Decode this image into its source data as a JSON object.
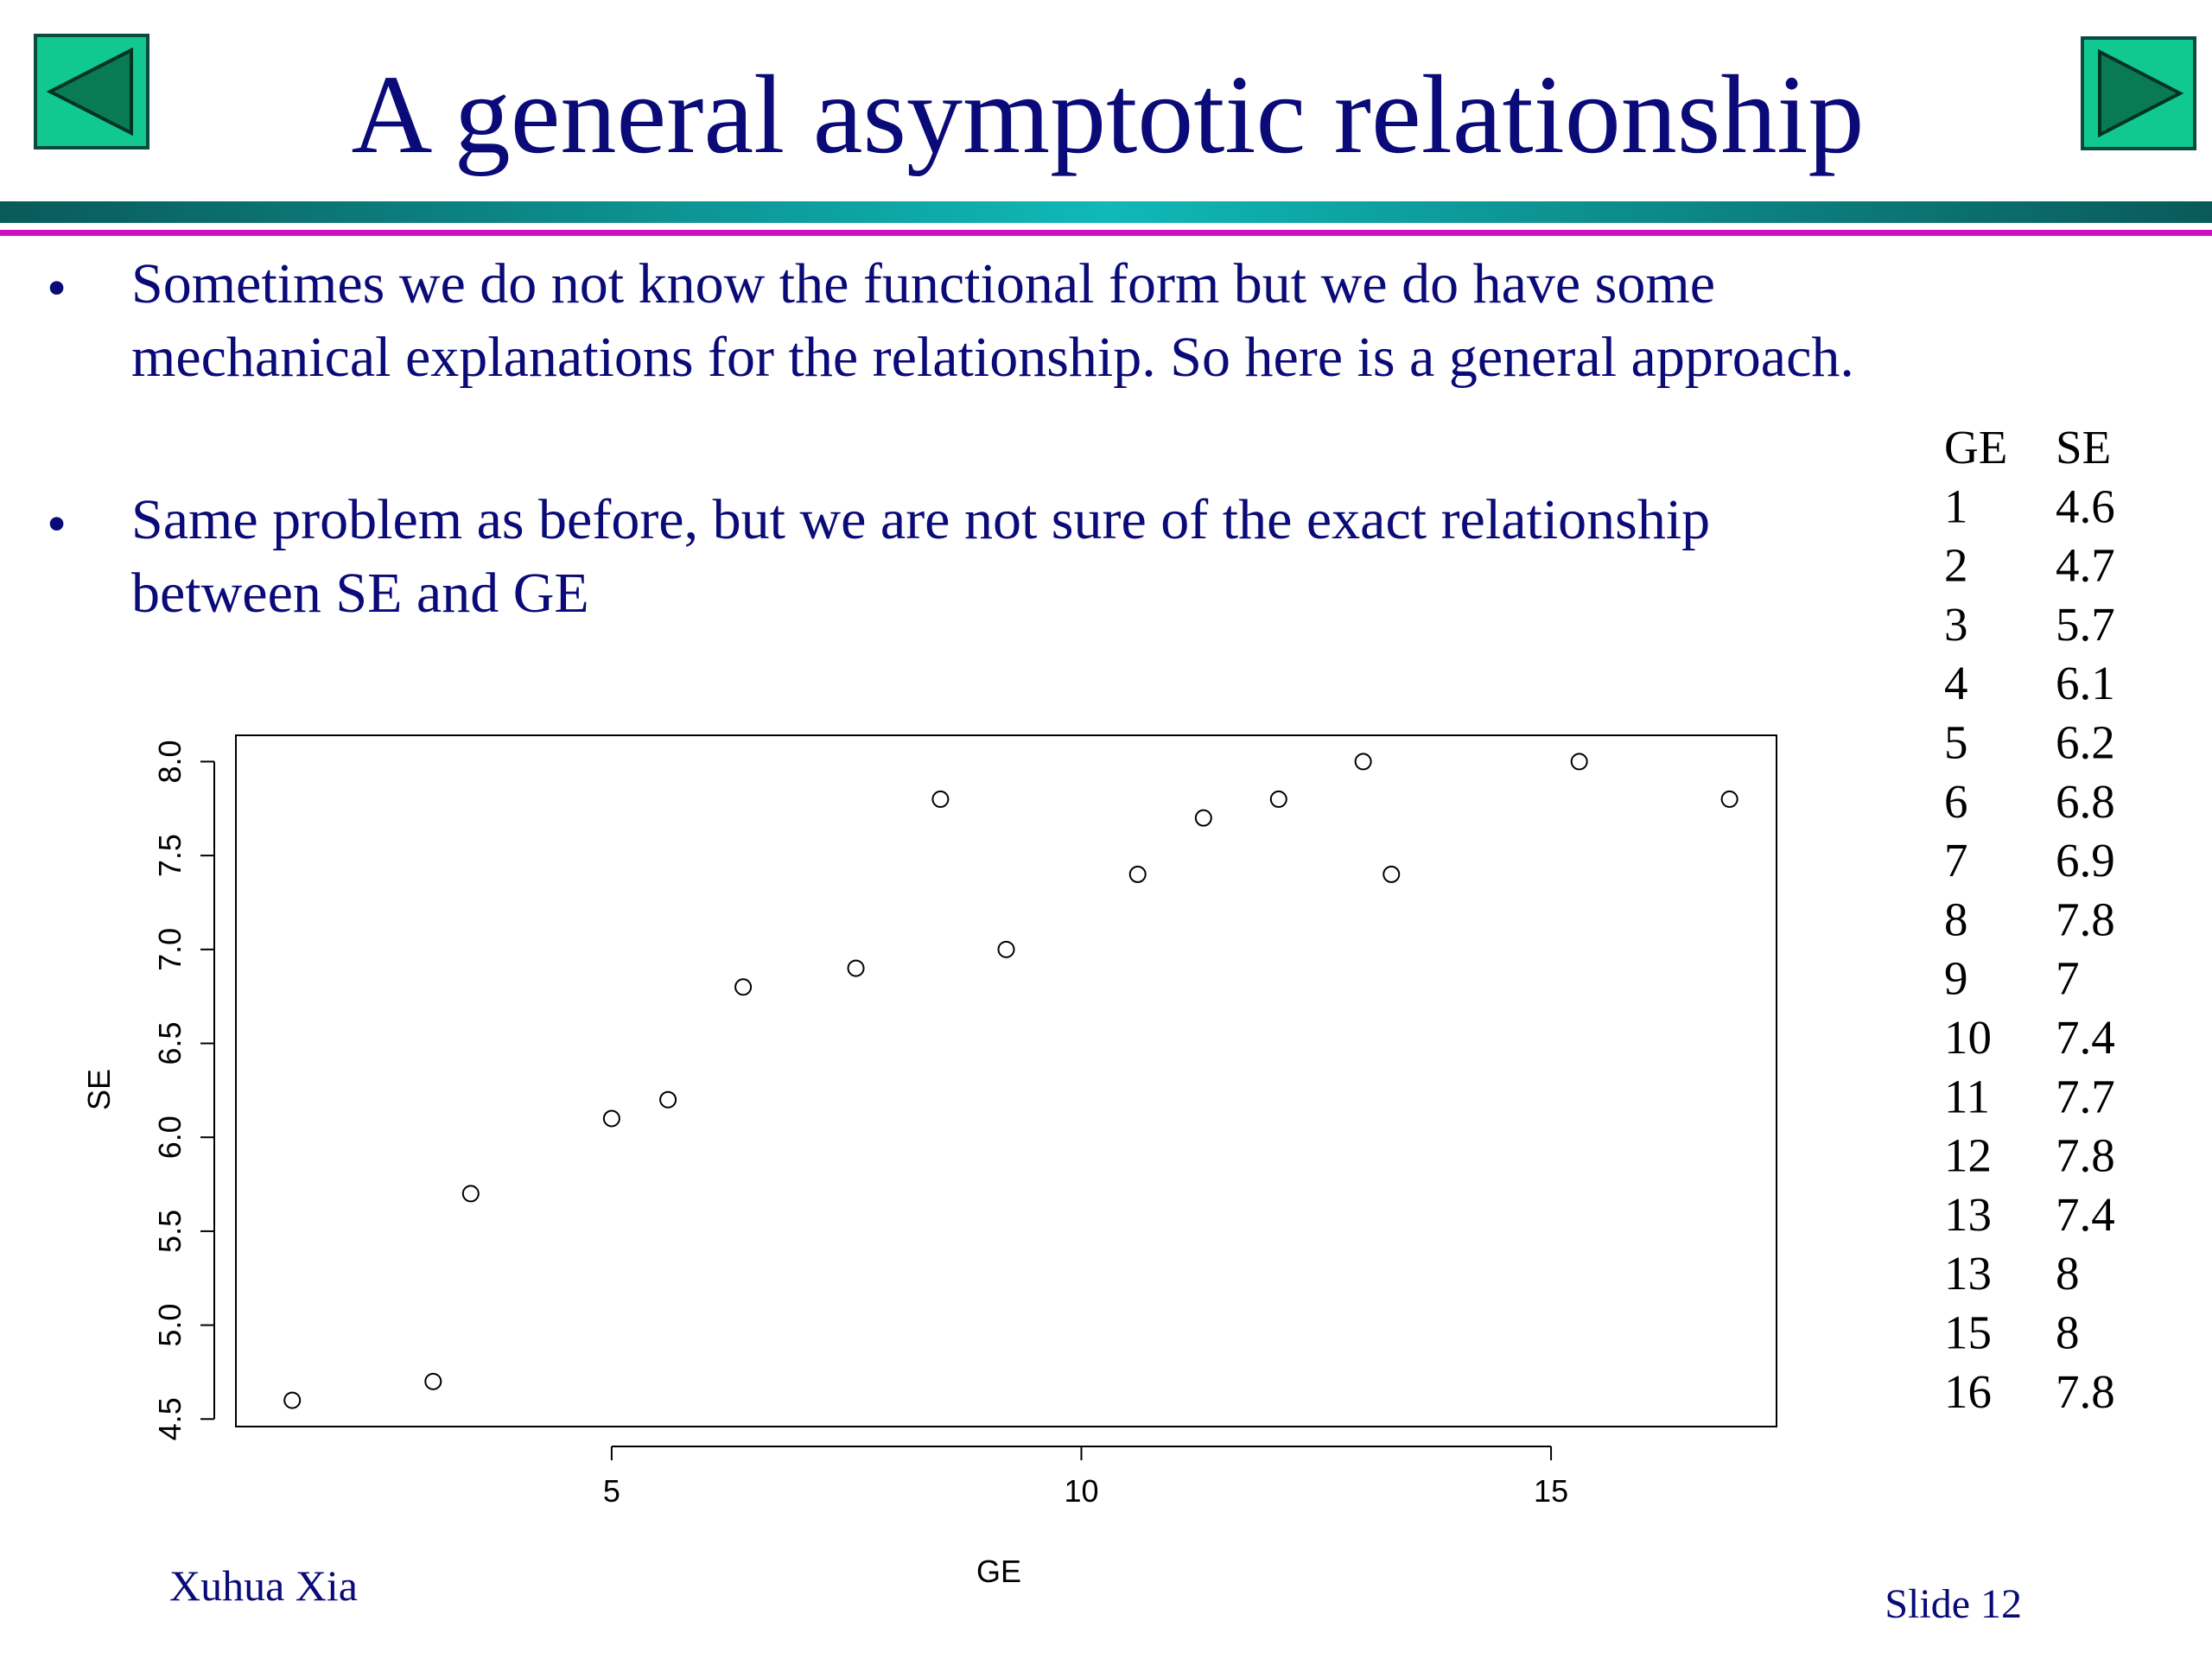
{
  "header": {
    "title": "A general asymptotic relationship"
  },
  "bullets": [
    "Sometimes we do not know the functional form but we do have some mechanical explanations for the relationship. So here is a general approach.",
    "Same problem as before, but we are not sure of the exact relationship between SE and GE"
  ],
  "table": {
    "columns": [
      "GE",
      "SE"
    ],
    "rows": [
      [
        1,
        4.6
      ],
      [
        2,
        4.7
      ],
      [
        3,
        5.7
      ],
      [
        4,
        6.1
      ],
      [
        5,
        6.2
      ],
      [
        6,
        6.8
      ],
      [
        7,
        6.9
      ],
      [
        8,
        7.8
      ],
      [
        9,
        7
      ],
      [
        10,
        7.4
      ],
      [
        11,
        7.7
      ],
      [
        12,
        7.8
      ],
      [
        13,
        7.4
      ],
      [
        13,
        8
      ],
      [
        15,
        8
      ],
      [
        16,
        7.8
      ]
    ]
  },
  "chart_data": {
    "type": "scatter",
    "x_label": "GE",
    "y_label": "SE",
    "color": "#000000",
    "x": [
      1.6,
      3.1,
      3.5,
      5.0,
      5.6,
      6.4,
      7.6,
      8.5,
      9.2,
      10.6,
      11.3,
      12.1,
      13.0,
      13.3,
      15.3,
      16.9
    ],
    "values": [
      4.6,
      4.7,
      5.7,
      6.1,
      6.2,
      6.8,
      6.9,
      7.8,
      7.0,
      7.4,
      7.7,
      7.8,
      8.0,
      7.4,
      8.0,
      7.8
    ],
    "xlim": [
      1,
      17.4
    ],
    "ylim": [
      4.46,
      8.14
    ],
    "xticks": [
      5,
      10,
      15
    ],
    "yticks": [
      4.5,
      {
        "value": 5,
        "label": "5.0"
      },
      5.5,
      {
        "value": 6,
        "label": "6.0"
      },
      6.5,
      {
        "value": 7,
        "label": "7.0"
      },
      7.5,
      {
        "value": 8,
        "label": "8.0"
      }
    ]
  },
  "footer": {
    "author": "Xuhua Xia",
    "slide": "Slide 12"
  }
}
